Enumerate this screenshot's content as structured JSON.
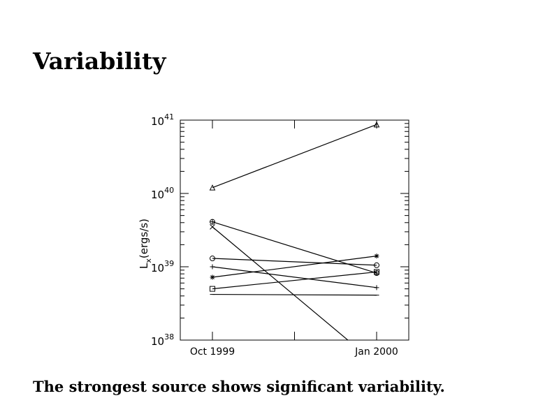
{
  "slide": {
    "title": "Variability",
    "caption": "The strongest source shows significant variability."
  },
  "chart_data": {
    "type": "line",
    "title": "",
    "xlabel": "",
    "ylabel": "L",
    "ylabel_sub": "x",
    "ylabel_unit": "(ergs/s)",
    "y_scale": "log",
    "ylim": [
      1e+38,
      1e+41
    ],
    "y_ticks": [
      {
        "base": "10",
        "exp": "38"
      },
      {
        "base": "10",
        "exp": "39"
      },
      {
        "base": "10",
        "exp": "40"
      },
      {
        "base": "10",
        "exp": "41"
      }
    ],
    "x": [
      "1999-10",
      "2000-01"
    ],
    "x_tick_labels": [
      "Oct 1999",
      "Jan 2000"
    ],
    "grid": false,
    "colors": {
      "line": "#000000"
    },
    "series": [
      {
        "marker": "triangle",
        "values": [
          1.2e+40,
          8.7e+40
        ]
      },
      {
        "marker": "circle-plus",
        "values": [
          4.1e+39,
          8.2e+38
        ]
      },
      {
        "marker": "x",
        "values": [
          3.5e+39,
          4.7e+37
        ]
      },
      {
        "marker": "circle",
        "values": [
          1.3e+39,
          1.05e+39
        ]
      },
      {
        "marker": "plus",
        "values": [
          1e+39,
          5.2e+38
        ]
      },
      {
        "marker": "star",
        "values": [
          7.2e+38,
          1.4e+39
        ]
      },
      {
        "marker": "square",
        "values": [
          5e+38,
          8.5e+38
        ]
      },
      {
        "marker": "dash",
        "values": [
          4.2e+38,
          4.1e+38
        ]
      }
    ]
  }
}
